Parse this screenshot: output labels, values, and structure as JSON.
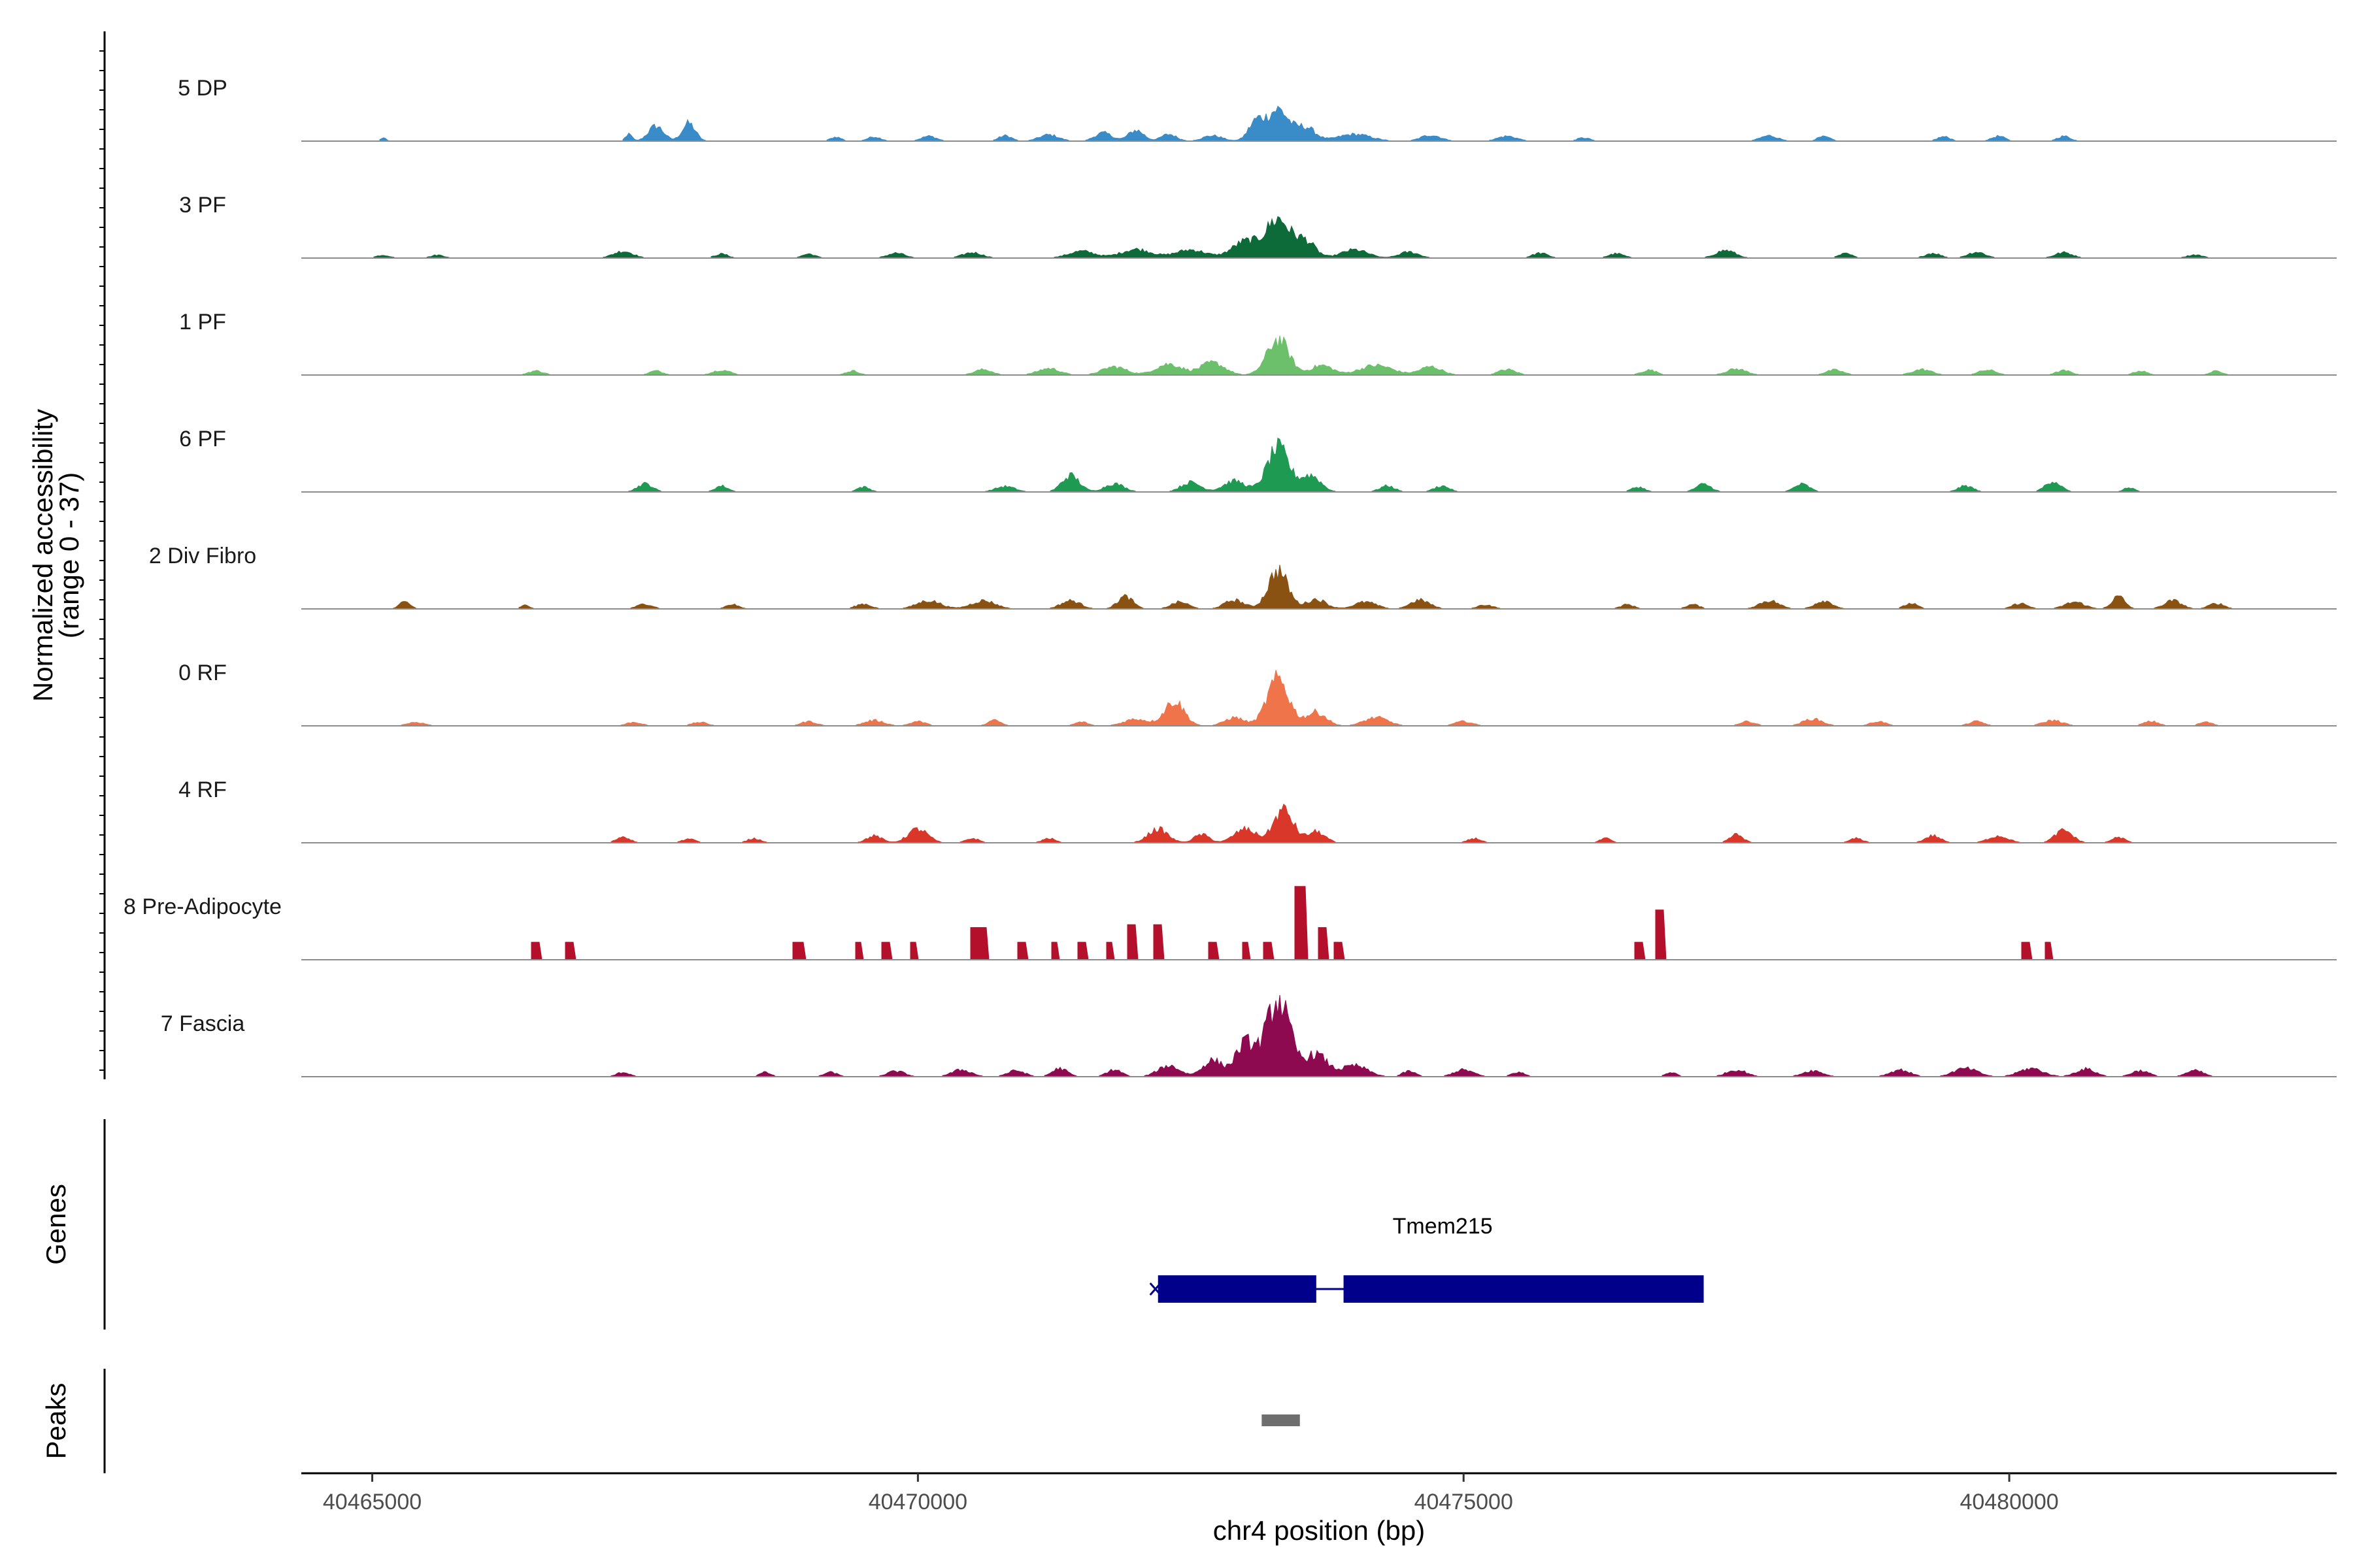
{
  "chart_data": {
    "type": "area",
    "title": "",
    "xlabel": "chr4 position (bp)",
    "ylabel": "Normalized accessibility",
    "ylabel_sub": "(range 0 - 37)",
    "ylim": [
      0,
      37
    ],
    "xlim": [
      40464350,
      40483000
    ],
    "x_ticks": [
      40465000,
      40470000,
      40475000,
      40480000
    ],
    "x_tick_labels": [
      "40465000",
      "40470000",
      "40475000",
      "40480000"
    ],
    "tracks": [
      {
        "name": "5 DP",
        "color": "#3a8cc8",
        "bumps": [
          [
            40465100,
            1.2,
            25
          ],
          [
            40467350,
            2.5,
            30
          ],
          [
            40467600,
            5.5,
            70
          ],
          [
            40467900,
            6.5,
            60
          ],
          [
            40469250,
            1.5,
            50
          ],
          [
            40469600,
            1.6,
            60
          ],
          [
            40470100,
            1.8,
            70
          ],
          [
            40470800,
            2,
            60
          ],
          [
            40471200,
            2.3,
            90
          ],
          [
            40471700,
            3,
            80
          ],
          [
            40472000,
            4,
            70
          ],
          [
            40472300,
            2.5,
            70
          ],
          [
            40472700,
            2,
            90
          ],
          [
            40473100,
            7,
            70
          ],
          [
            40473300,
            11.5,
            95
          ],
          [
            40473550,
            5,
            90
          ],
          [
            40474000,
            2.5,
            150
          ],
          [
            40474700,
            2.2,
            90
          ],
          [
            40475400,
            1.8,
            90
          ],
          [
            40476100,
            1.2,
            60
          ],
          [
            40477800,
            2,
            80
          ],
          [
            40478300,
            1.6,
            60
          ],
          [
            40479400,
            1.6,
            60
          ],
          [
            40479900,
            1.8,
            60
          ],
          [
            40480500,
            1.8,
            60
          ]
        ]
      },
      {
        "name": "3 PF",
        "color": "#0c6b38",
        "bumps": [
          [
            40465100,
            1.1,
            60
          ],
          [
            40465600,
            1.1,
            60
          ],
          [
            40467300,
            2.5,
            90
          ],
          [
            40468200,
            1.5,
            60
          ],
          [
            40469000,
            1.5,
            60
          ],
          [
            40469800,
            1.8,
            80
          ],
          [
            40470500,
            2,
            90
          ],
          [
            40471500,
            2.5,
            120
          ],
          [
            40472000,
            3.2,
            140
          ],
          [
            40472500,
            3,
            140
          ],
          [
            40473000,
            6,
            120
          ],
          [
            40473300,
            14,
            110
          ],
          [
            40473550,
            6,
            90
          ],
          [
            40474000,
            3,
            120
          ],
          [
            40474500,
            2.2,
            90
          ],
          [
            40475700,
            1.8,
            70
          ],
          [
            40476400,
            1.6,
            70
          ],
          [
            40477400,
            2.8,
            90
          ],
          [
            40478500,
            1.6,
            60
          ],
          [
            40479300,
            1.8,
            70
          ],
          [
            40479700,
            2.2,
            80
          ],
          [
            40480500,
            2,
            80
          ],
          [
            40481700,
            1.2,
            70
          ]
        ]
      },
      {
        "name": "1 PF",
        "color": "#6cc06b",
        "bumps": [
          [
            40466500,
            1.5,
            70
          ],
          [
            40467600,
            1.5,
            60
          ],
          [
            40468200,
            1.8,
            80
          ],
          [
            40469400,
            1.5,
            60
          ],
          [
            40470600,
            2,
            80
          ],
          [
            40471200,
            2.4,
            100
          ],
          [
            40471800,
            3,
            110
          ],
          [
            40472300,
            4,
            120
          ],
          [
            40472700,
            4.5,
            110
          ],
          [
            40473300,
            13,
            100
          ],
          [
            40473700,
            3.5,
            100
          ],
          [
            40474200,
            3.5,
            150
          ],
          [
            40474700,
            3,
            100
          ],
          [
            40475400,
            2,
            80
          ],
          [
            40476700,
            1.8,
            70
          ],
          [
            40477500,
            2.2,
            90
          ],
          [
            40478400,
            1.8,
            80
          ],
          [
            40479200,
            2,
            90
          ],
          [
            40479800,
            1.8,
            80
          ],
          [
            40480500,
            1.6,
            70
          ],
          [
            40481200,
            1.5,
            60
          ],
          [
            40481900,
            1.4,
            60
          ]
        ]
      },
      {
        "name": "6 PF",
        "color": "#1f9a52",
        "bumps": [
          [
            40467500,
            3,
            70
          ],
          [
            40468200,
            2.2,
            60
          ],
          [
            40469500,
            1.8,
            60
          ],
          [
            40470800,
            2,
            90
          ],
          [
            40471400,
            6,
            80
          ],
          [
            40471800,
            3,
            90
          ],
          [
            40472500,
            3.5,
            90
          ],
          [
            40472900,
            4,
            100
          ],
          [
            40473300,
            16,
            100
          ],
          [
            40473600,
            6,
            90
          ],
          [
            40474300,
            2.2,
            70
          ],
          [
            40474800,
            2.2,
            70
          ],
          [
            40476600,
            1.8,
            60
          ],
          [
            40477200,
            2.8,
            70
          ],
          [
            40478100,
            2.8,
            70
          ],
          [
            40479600,
            2.2,
            70
          ],
          [
            40480400,
            4,
            70
          ],
          [
            40481100,
            1.6,
            50
          ]
        ]
      },
      {
        "name": "2 Div Fibro",
        "color": "#8a5212",
        "bumps": [
          [
            40465300,
            2.5,
            50
          ],
          [
            40466400,
            1.4,
            40
          ],
          [
            40467500,
            1.8,
            70
          ],
          [
            40468300,
            1.6,
            60
          ],
          [
            40469500,
            1.8,
            70
          ],
          [
            40470100,
            3,
            110
          ],
          [
            40470600,
            3,
            110
          ],
          [
            40471400,
            3,
            90
          ],
          [
            40471900,
            4.5,
            70
          ],
          [
            40472400,
            2.5,
            80
          ],
          [
            40472900,
            3.2,
            90
          ],
          [
            40473300,
            14,
            90
          ],
          [
            40473650,
            3.5,
            90
          ],
          [
            40474100,
            2.5,
            100
          ],
          [
            40474600,
            3.2,
            90
          ],
          [
            40475200,
            1.5,
            70
          ],
          [
            40476500,
            1.6,
            60
          ],
          [
            40477100,
            1.6,
            60
          ],
          [
            40477800,
            3,
            90
          ],
          [
            40478300,
            3,
            80
          ],
          [
            40479100,
            2,
            60
          ],
          [
            40480100,
            2,
            70
          ],
          [
            40480600,
            2.5,
            90
          ],
          [
            40481000,
            4.5,
            60
          ],
          [
            40481500,
            3,
            80
          ],
          [
            40481900,
            2,
            70
          ]
        ]
      },
      {
        "name": "0 RF",
        "color": "#f0744a",
        "bumps": [
          [
            40465400,
            1.3,
            80
          ],
          [
            40467400,
            1.3,
            70
          ],
          [
            40468000,
            1.3,
            70
          ],
          [
            40469000,
            1.6,
            70
          ],
          [
            40469600,
            2,
            90
          ],
          [
            40470000,
            1.6,
            70
          ],
          [
            40470700,
            2,
            60
          ],
          [
            40471500,
            1.4,
            60
          ],
          [
            40472000,
            2.5,
            110
          ],
          [
            40472350,
            9,
            90
          ],
          [
            40472900,
            3,
            90
          ],
          [
            40473300,
            17,
            100
          ],
          [
            40473650,
            5,
            90
          ],
          [
            40474200,
            3,
            110
          ],
          [
            40475000,
            1.6,
            80
          ],
          [
            40477600,
            1.6,
            70
          ],
          [
            40478200,
            2.5,
            90
          ],
          [
            40478800,
            1.6,
            70
          ],
          [
            40479700,
            1.6,
            70
          ],
          [
            40480400,
            2,
            90
          ],
          [
            40481300,
            1.6,
            70
          ],
          [
            40481800,
            1.4,
            60
          ]
        ]
      },
      {
        "name": "4 RF",
        "color": "#d9372a",
        "bumps": [
          [
            40467300,
            2.3,
            60
          ],
          [
            40467900,
            1.4,
            60
          ],
          [
            40468500,
            1.6,
            60
          ],
          [
            40469600,
            2.5,
            70
          ],
          [
            40470000,
            5,
            90
          ],
          [
            40470500,
            1.6,
            60
          ],
          [
            40471200,
            1.6,
            60
          ],
          [
            40472200,
            5,
            90
          ],
          [
            40472600,
            3,
            70
          ],
          [
            40473000,
            5,
            100
          ],
          [
            40473350,
            12,
            90
          ],
          [
            40473650,
            4,
            80
          ],
          [
            40475100,
            1.6,
            60
          ],
          [
            40476300,
            1.6,
            50
          ],
          [
            40477500,
            3,
            60
          ],
          [
            40478600,
            1.6,
            60
          ],
          [
            40479300,
            2.6,
            70
          ],
          [
            40479900,
            2.5,
            90
          ],
          [
            40480500,
            4.5,
            80
          ],
          [
            40481000,
            2,
            60
          ]
        ]
      },
      {
        "name": "8 Pre-Adipocyte",
        "color": "#b5102b",
        "bumps": [
          [
            40466500,
            6,
            45
          ],
          [
            40466800,
            6,
            45
          ],
          [
            40468900,
            6,
            55
          ],
          [
            40469450,
            6,
            45
          ],
          [
            40469700,
            6,
            45
          ],
          [
            40469950,
            6,
            40
          ],
          [
            40470550,
            11,
            80
          ],
          [
            40470950,
            6,
            45
          ],
          [
            40471250,
            6,
            45
          ],
          [
            40471500,
            6,
            45
          ],
          [
            40471750,
            6,
            45
          ],
          [
            40471950,
            12,
            45
          ],
          [
            40472200,
            12,
            45
          ],
          [
            40472700,
            6,
            45
          ],
          [
            40473000,
            6,
            45
          ],
          [
            40473200,
            6,
            45
          ],
          [
            40473500,
            25,
            50
          ],
          [
            40473700,
            11,
            50
          ],
          [
            40473850,
            6,
            40
          ],
          [
            40476600,
            6,
            45
          ],
          [
            40476800,
            17,
            55
          ],
          [
            40480150,
            6,
            45
          ],
          [
            40480350,
            6,
            45
          ]
        ]
      },
      {
        "name": "7 Fascia",
        "color": "#8d0a50",
        "bumps": [
          [
            40467300,
            1.6,
            60
          ],
          [
            40468600,
            1.6,
            50
          ],
          [
            40469200,
            1.6,
            60
          ],
          [
            40469800,
            2,
            80
          ],
          [
            40470400,
            2.5,
            90
          ],
          [
            40470900,
            2.2,
            80
          ],
          [
            40471300,
            3,
            70
          ],
          [
            40471800,
            2.5,
            70
          ],
          [
            40472300,
            4,
            100
          ],
          [
            40472700,
            6,
            90
          ],
          [
            40473000,
            12,
            90
          ],
          [
            40473300,
            28,
            110
          ],
          [
            40473650,
            8,
            100
          ],
          [
            40474000,
            4,
            120
          ],
          [
            40474500,
            2,
            60
          ],
          [
            40475000,
            2.5,
            90
          ],
          [
            40475500,
            1.6,
            60
          ],
          [
            40476900,
            1.6,
            50
          ],
          [
            40477500,
            2.5,
            90
          ],
          [
            40478200,
            2.2,
            90
          ],
          [
            40479000,
            2.5,
            90
          ],
          [
            40479600,
            3,
            110
          ],
          [
            40480200,
            3,
            110
          ],
          [
            40480700,
            2.8,
            90
          ],
          [
            40481200,
            2.2,
            80
          ],
          [
            40481700,
            2.2,
            80
          ]
        ]
      }
    ],
    "genes": {
      "title": "Genes",
      "items": [
        {
          "name": "Tmem215",
          "start": 40472200,
          "end": 40477200,
          "strand": "-",
          "exons": [
            [
              40472200,
              40473650
            ],
            [
              40473900,
              40477200
            ]
          ]
        }
      ]
    },
    "peaks": {
      "title": "Peaks",
      "items": [
        [
          40473150,
          40473500
        ]
      ]
    }
  }
}
